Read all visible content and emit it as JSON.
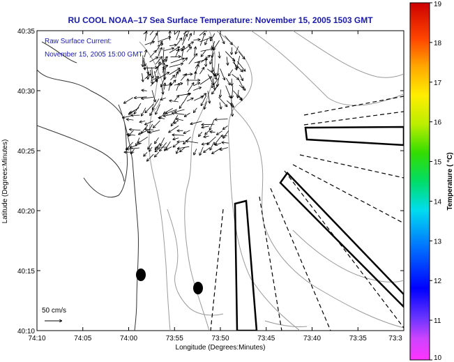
{
  "title": "RU COOL  NOAA–17  Sea Surface Temperature:  November 15, 2005 1503 GMT",
  "annotation": {
    "line1": "Raw Surface Current:",
    "line2": "November 15, 2005 15:00 GMT"
  },
  "scale_label": "50 cm/s",
  "x_axis": {
    "label": "Longitude (Degrees:Minutes)",
    "ticks": [
      "74:10",
      "74:05",
      "74:00",
      "73:55",
      "73:50",
      "73:45",
      "73:40",
      "73:35",
      "73:3"
    ]
  },
  "y_axis": {
    "label": "Latitude (Degrees:Minutes)",
    "ticks": [
      "40:35",
      "40:30",
      "40:25",
      "40:20",
      "40:15",
      "40:10"
    ]
  },
  "colorbar": {
    "label": "Temperature ( °C)",
    "min": 10,
    "max": 19,
    "ticks": [
      "19",
      "18",
      "17",
      "16",
      "15",
      "14",
      "13",
      "12",
      "11",
      "10"
    ]
  },
  "colors": {
    "title_text": "#1a1aa8",
    "contour": "#9a9a9a",
    "coast": "#333333"
  }
}
